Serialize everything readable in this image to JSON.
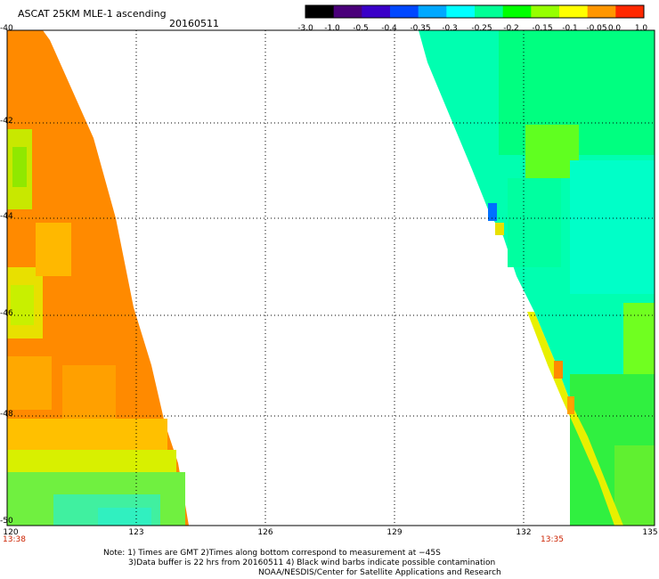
{
  "header": {
    "title": "ASCAT 25KM MLE-1 ascending",
    "date": "20160511"
  },
  "colorbar": {
    "ticks": [
      "-3.0",
      "-1.0",
      "-0.5",
      "-0.4",
      "-0.35",
      "-0.3",
      "-0.25",
      "-0.2",
      "-0.15",
      "-0.1",
      "-0.05",
      "0.0",
      "1.0"
    ],
    "colors": [
      "#000000",
      "#4a007a",
      "#3a00c8",
      "#0048ff",
      "#00a8ff",
      "#00ffff",
      "#00ff96",
      "#00ff00",
      "#96ff00",
      "#ffff00",
      "#ff9600",
      "#ff2800"
    ]
  },
  "map": {
    "lat_labels": [
      "-40",
      "-42",
      "-44",
      "-46",
      "-48",
      "-50"
    ],
    "lon_labels": [
      "120",
      "123",
      "126",
      "129",
      "132",
      "135"
    ],
    "time_left": "13:38",
    "time_right": "13:35"
  },
  "notes": {
    "line1": "Note: 1) Times are GMT 2)Times along bottom correspond to measurement at −45S",
    "line2": "3)Data buffer is 22 hrs from 20160511 4) Black wind barbs indicate possible contamination",
    "line3": "NOAA/NESDIS/Center for Satellite Applications and Research"
  }
}
